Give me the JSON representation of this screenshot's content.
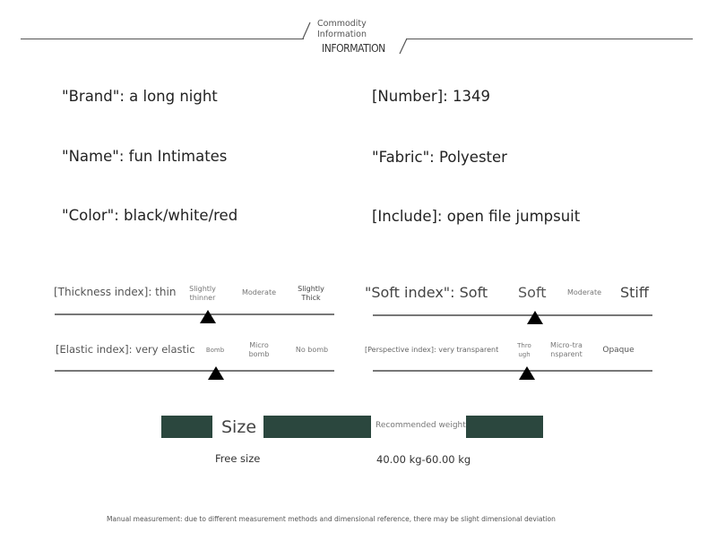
{
  "header": {
    "title_line1": "Commodity",
    "title_line2": "Information",
    "title_en": "INFORMATION"
  },
  "info": {
    "brand": "\"Brand\": a long night",
    "number": "[Number]: 1349",
    "name": "\"Name\": fun Intimates",
    "fabric": "\"Fabric\": Polyester",
    "color": "\"Color\": black/white/red",
    "include": "[Include]: open file jumpsuit"
  },
  "indexes": {
    "thickness": {
      "label": "[Thickness index]: thin",
      "options": [
        "Slightly thinner",
        "Moderate",
        "Slightly Thick"
      ],
      "selected": "Slightly thinner"
    },
    "soft": {
      "label": "\"Soft index\": Soft",
      "options": [
        "Soft",
        "Moderate",
        "Stiff"
      ],
      "selected": "Soft"
    },
    "elastic": {
      "label": "[Elastic index]: very elastic",
      "options": [
        "Bomb",
        "Micro bomb",
        "No bomb"
      ],
      "selected": "Bomb"
    },
    "perspective": {
      "label": "[Perspective index]: very transparent",
      "options": [
        "Through",
        "Micro-transparent",
        "Opaque"
      ],
      "selected": "Through"
    }
  },
  "size": {
    "title": "Size",
    "value": "Free size",
    "weight_label": "Recommended weight",
    "weight_value": "40.00 kg-60.00 kg"
  },
  "colors": {
    "accent": "#2b473e"
  },
  "footnote": "Manual measurement: due to different measurement methods and dimensional reference, there may be slight dimensional deviation"
}
